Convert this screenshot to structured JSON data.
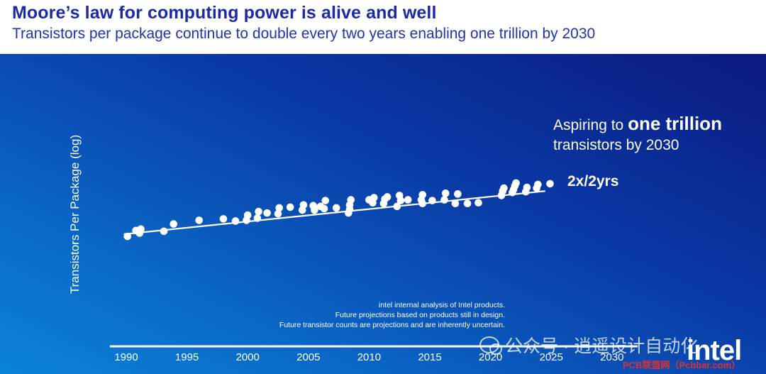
{
  "header": {
    "title": "Moore’s law for computing power is alive and well",
    "subtitle": "Transistors per package continue to double every two years enabling one trillion by 2030"
  },
  "annotation": {
    "line1_prefix": "Aspiring to ",
    "line1_bold": "one trillion",
    "line2": "transistors by 2030",
    "trend_label": "2x/2yrs"
  },
  "notes": [
    "intel internal analysis of Intel products.",
    "Future projections based on products still in design.",
    "Future transistor counts are projections and are inherently uncertain."
  ],
  "watermark": "公众号 · 逍遥设计自动化",
  "logo": "intel",
  "site": "PCB联盟网（Pcbbar.com）",
  "colors": {
    "title": "#1a2ba8",
    "panel_top": "#0b1a80",
    "panel_bottom": "#0a84d8",
    "marks": "#ffffff"
  },
  "chart_data": {
    "type": "scatter",
    "title": "",
    "xlabel": "",
    "ylabel": "Transistors Per Package (log)",
    "y_scale": "log",
    "xlim": [
      1989,
      2032
    ],
    "x_ticks": [
      1990,
      1995,
      2000,
      2005,
      2010,
      2015,
      2020,
      2025,
      2030
    ],
    "trend": {
      "label": "2x/2yrs",
      "x": [
        1989.8,
        2024.5
      ],
      "y": [
        0.0,
        5.9
      ]
    },
    "points": [
      {
        "x": 1990.1,
        "y": -0.3
      },
      {
        "x": 1990.8,
        "y": 0.5
      },
      {
        "x": 1991.1,
        "y": 0.15
      },
      {
        "x": 1991.2,
        "y": 0.7
      },
      {
        "x": 1993.1,
        "y": 0.4
      },
      {
        "x": 1993.9,
        "y": 1.4
      },
      {
        "x": 1996.0,
        "y": 1.9
      },
      {
        "x": 1998.0,
        "y": 2.1
      },
      {
        "x": 1999.0,
        "y": 1.8
      },
      {
        "x": 1999.9,
        "y": 1.9
      },
      {
        "x": 2000.0,
        "y": 2.6
      },
      {
        "x": 2000.8,
        "y": 2.2
      },
      {
        "x": 2000.9,
        "y": 3.1
      },
      {
        "x": 2001.6,
        "y": 2.9
      },
      {
        "x": 2002.5,
        "y": 2.8
      },
      {
        "x": 2002.6,
        "y": 3.6
      },
      {
        "x": 2003.5,
        "y": 3.7
      },
      {
        "x": 2004.5,
        "y": 3.3
      },
      {
        "x": 2004.6,
        "y": 4.0
      },
      {
        "x": 2005.4,
        "y": 3.9
      },
      {
        "x": 2005.5,
        "y": 3.3
      },
      {
        "x": 2006.0,
        "y": 3.8
      },
      {
        "x": 2006.3,
        "y": 3.5
      },
      {
        "x": 2006.4,
        "y": 4.6
      },
      {
        "x": 2007.3,
        "y": 3.6
      },
      {
        "x": 2008.3,
        "y": 2.9
      },
      {
        "x": 2008.4,
        "y": 3.4
      },
      {
        "x": 2008.4,
        "y": 4.0
      },
      {
        "x": 2008.5,
        "y": 4.7
      },
      {
        "x": 2010.0,
        "y": 4.7
      },
      {
        "x": 2010.3,
        "y": 4.3
      },
      {
        "x": 2010.4,
        "y": 5.0
      },
      {
        "x": 2011.2,
        "y": 4.2
      },
      {
        "x": 2011.3,
        "y": 4.8
      },
      {
        "x": 2011.5,
        "y": 5.1
      },
      {
        "x": 2012.3,
        "y": 3.8
      },
      {
        "x": 2012.5,
        "y": 5.3
      },
      {
        "x": 2012.6,
        "y": 4.6
      },
      {
        "x": 2013.2,
        "y": 4.7
      },
      {
        "x": 2014.3,
        "y": 4.7
      },
      {
        "x": 2014.4,
        "y": 4.2
      },
      {
        "x": 2014.4,
        "y": 5.4
      },
      {
        "x": 2015.2,
        "y": 4.6
      },
      {
        "x": 2016.2,
        "y": 4.7
      },
      {
        "x": 2016.3,
        "y": 5.6
      },
      {
        "x": 2017.1,
        "y": 4.2
      },
      {
        "x": 2017.3,
        "y": 5.5
      },
      {
        "x": 2018.1,
        "y": 4.2
      },
      {
        "x": 2019.0,
        "y": 4.3
      },
      {
        "x": 2020.9,
        "y": 5.3
      },
      {
        "x": 2021.0,
        "y": 5.9
      },
      {
        "x": 2021.1,
        "y": 6.3
      },
      {
        "x": 2021.8,
        "y": 5.7
      },
      {
        "x": 2021.9,
        "y": 6.1
      },
      {
        "x": 2022.0,
        "y": 6.6
      },
      {
        "x": 2022.1,
        "y": 7.0
      },
      {
        "x": 2022.9,
        "y": 5.8
      },
      {
        "x": 2023.0,
        "y": 6.4
      },
      {
        "x": 2023.8,
        "y": 6.3
      },
      {
        "x": 2023.9,
        "y": 6.8
      },
      {
        "x": 2024.9,
        "y": 6.9
      }
    ]
  }
}
